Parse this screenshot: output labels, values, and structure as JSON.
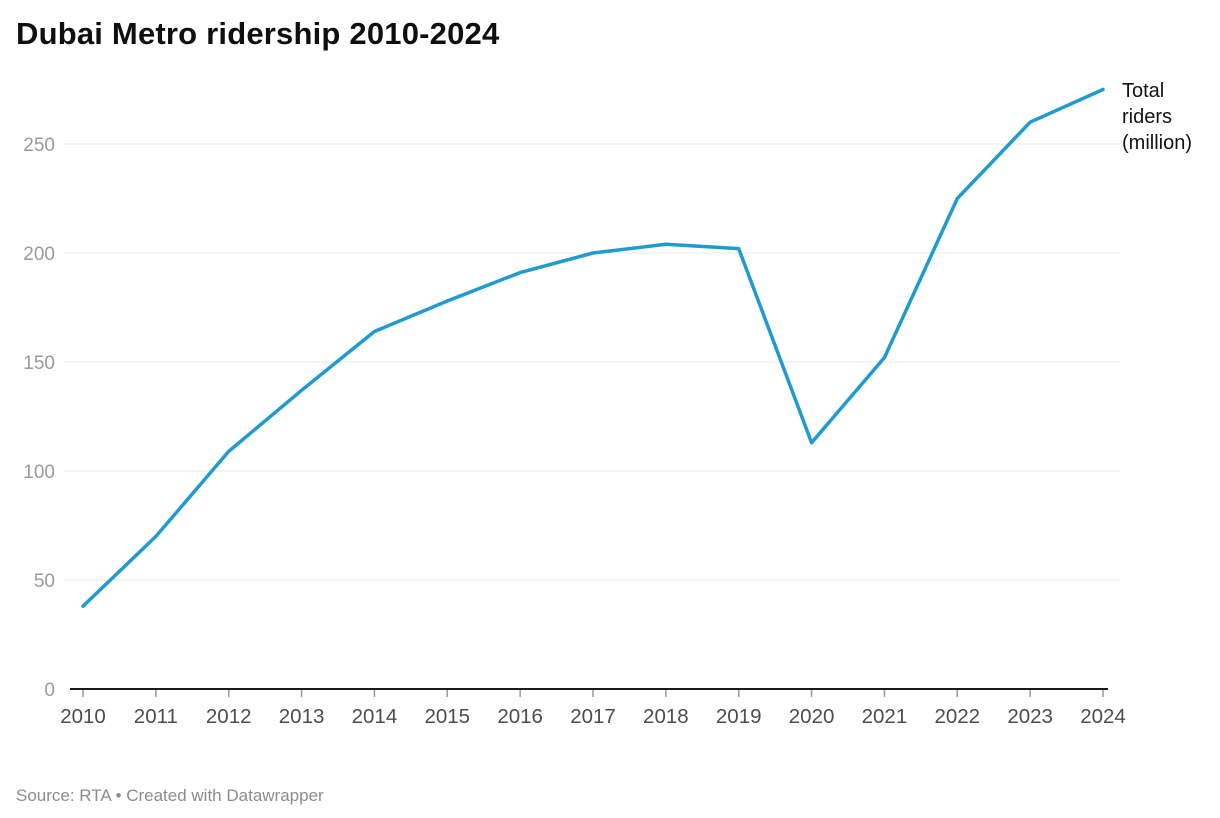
{
  "header": {
    "title": "Dubai Metro ridership 2010-2024"
  },
  "chart_data": {
    "type": "line",
    "title": "Dubai Metro ridership 2010-2024",
    "x": [
      2010,
      2011,
      2012,
      2013,
      2014,
      2015,
      2016,
      2017,
      2018,
      2019,
      2020,
      2021,
      2022,
      2023,
      2024
    ],
    "series": [
      {
        "name": "Total riders (million)",
        "values": [
          38,
          70,
          109,
          137,
          164,
          178,
          191,
          200,
          204,
          202,
          113,
          152,
          225,
          260,
          275
        ]
      }
    ],
    "xlabel": "",
    "ylabel": "Total riders (million)",
    "ylim": [
      0,
      280
    ],
    "yticks": [
      0,
      50,
      100,
      150,
      200,
      250
    ],
    "grid": true,
    "legend_position": "end-of-line",
    "line_color": "#1f9bd1",
    "grid_color": "#e8e8e8",
    "axis_color": "#1a1a1a",
    "tick_color": "#9b9b9b",
    "y_label_color": "#9a9a9a",
    "x_label_color": "#4d4d4d"
  },
  "footer": {
    "text": "Source: RTA • Created with Datawrapper"
  }
}
